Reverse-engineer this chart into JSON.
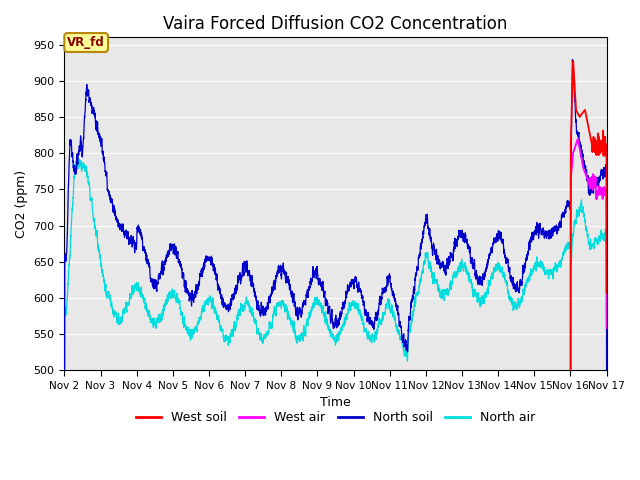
{
  "title": "Vaira Forced Diffusion CO2 Concentration",
  "xlabel": "Time",
  "ylabel": "CO2 (ppm)",
  "ylim": [
    500,
    960
  ],
  "yticks": [
    500,
    550,
    600,
    650,
    700,
    750,
    800,
    850,
    900,
    950
  ],
  "annotation_text": "VR_fd",
  "annotation_color": "#8B0000",
  "annotation_bg": "#FFFF99",
  "annotation_border": "#B8860B",
  "color_west_soil": "#FF0000",
  "color_west_air": "#FF00FF",
  "color_north_soil": "#0000CC",
  "color_north_air": "#00DDDD",
  "bg_color": "#E8E8E8",
  "legend_labels": [
    "West soil",
    "West air",
    "North soil",
    "North air"
  ],
  "n_points": 7200,
  "x_start": 2.0,
  "x_end": 17.0,
  "xtick_positions": [
    2,
    3,
    4,
    5,
    6,
    7,
    8,
    9,
    10,
    11,
    12,
    13,
    14,
    15,
    16,
    17
  ],
  "xtick_labels": [
    "Nov 2",
    "Nov 3",
    "Nov 4",
    "Nov 5",
    "Nov 6",
    "Nov 7",
    "Nov 8",
    "Nov 9",
    "Nov 10",
    "Nov 11",
    "Nov 12",
    "Nov 13",
    "Nov 14",
    "Nov 15",
    "Nov 16",
    "Nov 17"
  ],
  "figsize": [
    6.4,
    4.8
  ],
  "dpi": 100
}
